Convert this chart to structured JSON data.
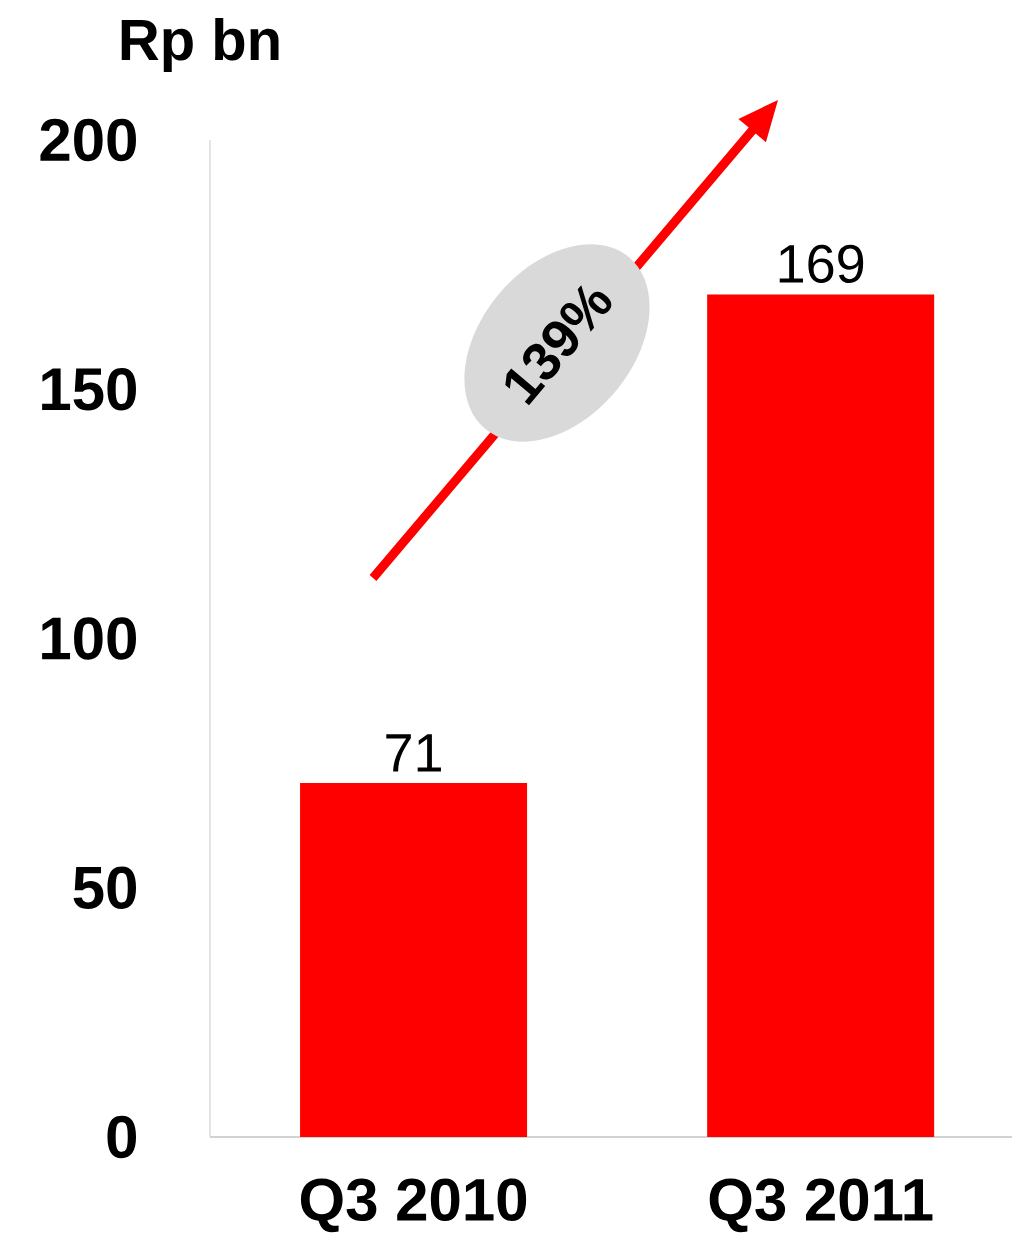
{
  "chart_data": {
    "type": "bar",
    "ylabel": "Rp bn",
    "categories": [
      "Q3 2010",
      "Q3 2011"
    ],
    "values": [
      71,
      169
    ],
    "color": "#ff0000",
    "ylim": [
      0,
      200
    ],
    "yticks": [
      0,
      50,
      100,
      150,
      200
    ],
    "data_labels": true,
    "grid": false,
    "annotations": [
      "139%"
    ]
  }
}
